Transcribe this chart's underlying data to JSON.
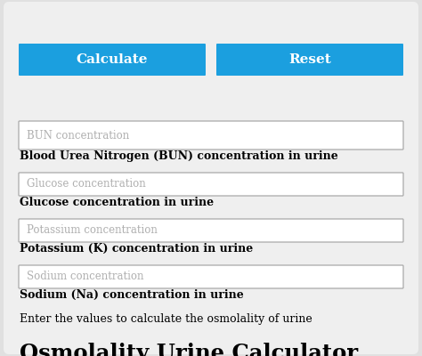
{
  "title": "Osmolality Urine Calculator",
  "subtitle": "Enter the values to calculate the osmolality of urine",
  "fields": [
    {
      "label": "Sodium (Na) concentration in urine",
      "placeholder": "Sodium concentration"
    },
    {
      "label": "Potassium (K) concentration in urine",
      "placeholder": "Potassium concentration"
    },
    {
      "label": "Glucose concentration in urine",
      "placeholder": "Glucose concentration"
    },
    {
      "label": "Blood Urea Nitrogen (BUN) concentration in urine",
      "placeholder": "BUN concentration"
    }
  ],
  "buttons": [
    {
      "text": "Calculate",
      "color": "#1b9fdf"
    },
    {
      "text": "Reset",
      "color": "#1b9fdf"
    }
  ],
  "bg_color": "#e0e0e0",
  "card_color": "#efefef",
  "input_bg": "#ffffff",
  "input_border": "#b0b0b0",
  "title_color": "#000000",
  "label_color": "#000000",
  "placeholder_color": "#b0b0b0",
  "button_text_color": "#ffffff",
  "figsize": [
    4.74,
    4.0
  ],
  "dpi": 100
}
